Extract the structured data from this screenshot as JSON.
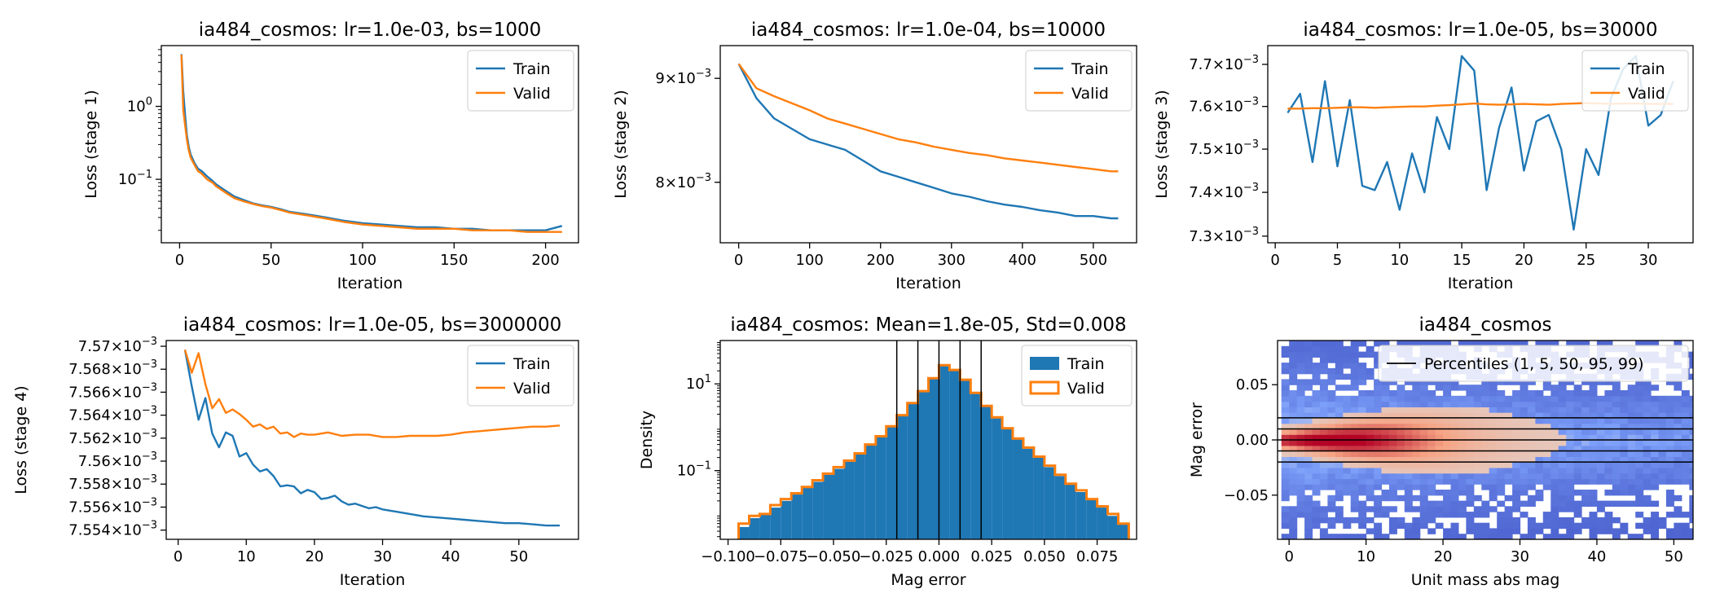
{
  "colors": {
    "train": "#1f77b4",
    "valid": "#ff7f0e",
    "percentile_line": "#000000"
  },
  "chart_data": [
    {
      "type": "line",
      "title": "ia484_cosmos: lr=1.0e-03, bs=1000",
      "xlabel": "Iteration",
      "ylabel": "Loss (stage 1)",
      "yscale": "log",
      "xlim": [
        -10,
        218
      ],
      "ylim": [
        0.0135,
        6.8
      ],
      "xticks": [
        0,
        50,
        100,
        150,
        200
      ],
      "xtick_labels": [
        "0",
        "50",
        "100",
        "150",
        "200"
      ],
      "yticks": [
        1,
        0.1
      ],
      "ytick_labels": [
        "10^0",
        "10^−1"
      ],
      "legend": "top-right",
      "series": [
        {
          "name": "Train",
          "color_key": "train",
          "x": [
            1,
            2,
            3,
            4,
            5,
            6,
            8,
            10,
            12,
            15,
            18,
            20,
            25,
            30,
            35,
            40,
            45,
            50,
            55,
            60,
            70,
            80,
            90,
            100,
            110,
            120,
            130,
            140,
            150,
            160,
            170,
            180,
            190,
            200,
            209
          ],
          "y": [
            5.2,
            1.6,
            0.75,
            0.4,
            0.28,
            0.22,
            0.17,
            0.14,
            0.13,
            0.11,
            0.095,
            0.085,
            0.07,
            0.058,
            0.052,
            0.047,
            0.044,
            0.042,
            0.039,
            0.036,
            0.033,
            0.03,
            0.027,
            0.025,
            0.024,
            0.023,
            0.022,
            0.022,
            0.021,
            0.021,
            0.02,
            0.02,
            0.02,
            0.02,
            0.023
          ]
        },
        {
          "name": "Valid",
          "color_key": "valid",
          "x": [
            1,
            2,
            3,
            4,
            5,
            6,
            8,
            10,
            12,
            15,
            18,
            20,
            25,
            30,
            35,
            40,
            45,
            50,
            55,
            60,
            70,
            80,
            90,
            100,
            110,
            120,
            130,
            140,
            150,
            160,
            170,
            180,
            190,
            200,
            209
          ],
          "y": [
            5.1,
            0.9,
            0.55,
            0.35,
            0.25,
            0.2,
            0.16,
            0.13,
            0.12,
            0.1,
            0.09,
            0.08,
            0.066,
            0.055,
            0.05,
            0.046,
            0.043,
            0.041,
            0.038,
            0.035,
            0.032,
            0.029,
            0.026,
            0.024,
            0.023,
            0.022,
            0.021,
            0.021,
            0.021,
            0.02,
            0.02,
            0.02,
            0.019,
            0.019,
            0.019
          ]
        }
      ]
    },
    {
      "type": "line",
      "title": "ia484_cosmos: lr=1.0e-04, bs=10000",
      "xlabel": "Iteration",
      "ylabel": "Loss (stage 2)",
      "yscale": "log",
      "xlim": [
        -26,
        561
      ],
      "ylim": [
        0.00747,
        0.00934
      ],
      "xticks": [
        0,
        100,
        200,
        300,
        400,
        500
      ],
      "xtick_labels": [
        "0",
        "100",
        "200",
        "300",
        "400",
        "500"
      ],
      "yticks": [
        0.009,
        0.008
      ],
      "ytick_labels": [
        "9×10^−3",
        "8×10^−3"
      ],
      "legend": "top-right",
      "series": [
        {
          "name": "Train",
          "color_key": "train",
          "x": [
            0,
            25,
            50,
            75,
            100,
            125,
            150,
            175,
            200,
            225,
            250,
            275,
            300,
            325,
            350,
            375,
            400,
            425,
            450,
            475,
            500,
            525,
            535
          ],
          "y": [
            0.00915,
            0.0088,
            0.0086,
            0.0085,
            0.0084,
            0.00835,
            0.0083,
            0.0082,
            0.0081,
            0.00805,
            0.008,
            0.00795,
            0.0079,
            0.00787,
            0.00783,
            0.0078,
            0.00778,
            0.00775,
            0.00773,
            0.0077,
            0.0077,
            0.00768,
            0.00768
          ]
        },
        {
          "name": "Valid",
          "color_key": "valid",
          "x": [
            0,
            25,
            50,
            75,
            100,
            125,
            150,
            175,
            200,
            225,
            250,
            275,
            300,
            325,
            350,
            375,
            400,
            425,
            450,
            475,
            500,
            525,
            535
          ],
          "y": [
            0.00915,
            0.0089,
            0.00882,
            0.00875,
            0.00868,
            0.0086,
            0.00855,
            0.0085,
            0.00845,
            0.0084,
            0.00837,
            0.00833,
            0.0083,
            0.00827,
            0.00825,
            0.00822,
            0.0082,
            0.00818,
            0.00816,
            0.00814,
            0.00812,
            0.0081,
            0.0081
          ]
        }
      ]
    },
    {
      "type": "line",
      "title": "ia484_cosmos: lr=1.0e-05, bs=30000",
      "xlabel": "Iteration",
      "ylabel": "Loss (stage 3)",
      "yscale": "log",
      "xlim": [
        -0.6,
        33.6
      ],
      "ylim": [
        0.007285,
        0.007745
      ],
      "xticks": [
        0,
        5,
        10,
        15,
        20,
        25,
        30
      ],
      "xtick_labels": [
        "0",
        "5",
        "10",
        "15",
        "20",
        "25",
        "30"
      ],
      "yticks": [
        0.0077,
        0.0076,
        0.0075,
        0.0074,
        0.0073
      ],
      "ytick_labels": [
        "7.7×10^−3",
        "7.6×10^−3",
        "7.5×10^−3",
        "7.4×10^−3",
        "7.3×10^−3"
      ],
      "legend": "top-right",
      "series": [
        {
          "name": "Train",
          "color_key": "train",
          "x": [
            1,
            2,
            3,
            4,
            5,
            6,
            7,
            8,
            9,
            10,
            11,
            12,
            13,
            14,
            15,
            16,
            17,
            18,
            19,
            20,
            21,
            22,
            23,
            24,
            25,
            26,
            27,
            28,
            29,
            30,
            31,
            32
          ],
          "y": [
            0.007585,
            0.00763,
            0.00747,
            0.00766,
            0.00746,
            0.007615,
            0.007415,
            0.007405,
            0.00747,
            0.00736,
            0.00749,
            0.0074,
            0.007575,
            0.0075,
            0.00772,
            0.007685,
            0.007405,
            0.00755,
            0.007645,
            0.00745,
            0.007565,
            0.00758,
            0.0075,
            0.007315,
            0.0075,
            0.00744,
            0.00762,
            0.00769,
            0.00772,
            0.007555,
            0.00758,
            0.00766
          ]
        },
        {
          "name": "Valid",
          "color_key": "valid",
          "x": [
            1,
            2,
            3,
            4,
            5,
            6,
            7,
            8,
            9,
            10,
            11,
            12,
            13,
            14,
            15,
            16,
            17,
            18,
            19,
            20,
            21,
            22,
            23,
            24,
            25,
            26,
            27,
            28,
            29,
            30,
            31,
            32
          ],
          "y": [
            0.007595,
            0.007595,
            0.007596,
            0.007596,
            0.007597,
            0.007598,
            0.007598,
            0.007597,
            0.007598,
            0.007599,
            0.0076,
            0.0076,
            0.007602,
            0.007603,
            0.007605,
            0.007607,
            0.007605,
            0.007604,
            0.007605,
            0.007606,
            0.007605,
            0.007604,
            0.007606,
            0.007607,
            0.007608,
            0.007607,
            0.007606,
            0.007607,
            0.007607,
            0.007606,
            0.007606,
            0.007606
          ]
        }
      ]
    },
    {
      "type": "line",
      "title": "ia484_cosmos: lr=1.0e-05, bs=3000000",
      "xlabel": "Iteration",
      "ylabel": "Loss (stage 4)",
      "yscale": "log",
      "xlim": [
        -1.75,
        58.75
      ],
      "ylim": [
        0.0075532,
        0.0075705
      ],
      "xticks": [
        0,
        10,
        20,
        30,
        40,
        50
      ],
      "xtick_labels": [
        "0",
        "10",
        "20",
        "30",
        "40",
        "50"
      ],
      "yticks": [
        0.00757,
        0.007568,
        0.007566,
        0.007564,
        0.007562,
        0.00756,
        0.007558,
        0.007556,
        0.007554
      ],
      "ytick_labels": [
        "7.57×10^−3",
        "7.568×10^−3",
        "7.566×10^−3",
        "7.564×10^−3",
        "7.562×10^−3",
        "7.56×10^−3",
        "7.558×10^−3",
        "7.556×10^−3",
        "7.554×10^−3"
      ],
      "legend": "top-right",
      "series": [
        {
          "name": "Train",
          "color_key": "train",
          "x": [
            1,
            2,
            3,
            4,
            5,
            6,
            7,
            8,
            9,
            10,
            11,
            12,
            13,
            14,
            15,
            16,
            17,
            18,
            19,
            20,
            21,
            22,
            23,
            24,
            25,
            26,
            27,
            28,
            29,
            30,
            32,
            34,
            36,
            38,
            40,
            42,
            44,
            46,
            48,
            50,
            52,
            54,
            56
          ],
          "y": [
            0.0075697,
            0.0075665,
            0.0075636,
            0.0075655,
            0.0075624,
            0.0075612,
            0.0075625,
            0.0075622,
            0.0075604,
            0.0075607,
            0.0075597,
            0.0075591,
            0.0075593,
            0.0075587,
            0.0075578,
            0.0075579,
            0.0075578,
            0.0075572,
            0.0075575,
            0.0075573,
            0.0075567,
            0.0075568,
            0.007557,
            0.0075565,
            0.0075562,
            0.0075563,
            0.0075561,
            0.0075559,
            0.007556,
            0.0075558,
            0.0075556,
            0.0075554,
            0.0075552,
            0.0075551,
            0.007555,
            0.0075549,
            0.0075548,
            0.0075547,
            0.0075546,
            0.0075546,
            0.0075545,
            0.0075544,
            0.0075544
          ]
        },
        {
          "name": "Valid",
          "color_key": "valid",
          "x": [
            1,
            2,
            3,
            4,
            5,
            6,
            7,
            8,
            9,
            10,
            11,
            12,
            13,
            14,
            15,
            16,
            17,
            18,
            19,
            20,
            22,
            24,
            26,
            28,
            30,
            32,
            34,
            36,
            38,
            40,
            42,
            44,
            46,
            48,
            50,
            52,
            54,
            56
          ],
          "y": [
            0.0075697,
            0.0075677,
            0.0075694,
            0.0075667,
            0.0075646,
            0.0075654,
            0.0075642,
            0.0075645,
            0.0075641,
            0.0075636,
            0.007563,
            0.0075632,
            0.0075628,
            0.007563,
            0.0075624,
            0.0075625,
            0.0075621,
            0.0075624,
            0.0075623,
            0.0075623,
            0.0075625,
            0.0075622,
            0.0075623,
            0.0075623,
            0.0075621,
            0.0075621,
            0.0075622,
            0.0075622,
            0.0075622,
            0.0075623,
            0.0075625,
            0.0075626,
            0.0075627,
            0.0075628,
            0.0075629,
            0.007563,
            0.007563,
            0.0075631
          ]
        }
      ]
    },
    {
      "type": "bar",
      "subtype": "histogram",
      "title": "ia484_cosmos: Mean=1.8e-05, Std=0.008",
      "xlabel": "Mag error",
      "ylabel": "Density",
      "yscale": "log",
      "xlim": [
        -0.1037,
        0.0937
      ],
      "ylim": [
        0.0026,
        100
      ],
      "xticks": [
        -0.1,
        -0.075,
        -0.05,
        -0.025,
        0.0,
        0.025,
        0.05,
        0.075
      ],
      "xtick_labels": [
        "−0.100",
        "−0.075",
        "−0.050",
        "−0.025",
        "0.000",
        "0.025",
        "0.050",
        "0.075"
      ],
      "yticks": [
        10,
        0.1
      ],
      "ytick_labels": [
        "10^1",
        "10^−1"
      ],
      "legend": "top-right",
      "bin_edges": [
        -0.095,
        -0.09,
        -0.085,
        -0.08,
        -0.075,
        -0.07,
        -0.065,
        -0.06,
        -0.055,
        -0.05,
        -0.045,
        -0.04,
        -0.035,
        -0.03,
        -0.025,
        -0.02,
        -0.015,
        -0.01,
        -0.005,
        0.0,
        0.005,
        0.01,
        0.015,
        0.02,
        0.025,
        0.03,
        0.035,
        0.04,
        0.045,
        0.05,
        0.055,
        0.06,
        0.065,
        0.07,
        0.075,
        0.08,
        0.085,
        0.09
      ],
      "series": [
        {
          "name": "Train",
          "style": "filled",
          "color_key": "train",
          "values": [
            0.005,
            0.008,
            0.01,
            0.014,
            0.02,
            0.028,
            0.04,
            0.055,
            0.08,
            0.11,
            0.16,
            0.24,
            0.38,
            0.6,
            1.0,
            1.8,
            3.5,
            6.5,
            13,
            28,
            20,
            12,
            6,
            3,
            1.6,
            0.9,
            0.52,
            0.32,
            0.2,
            0.12,
            0.075,
            0.05,
            0.032,
            0.021,
            0.014,
            0.009,
            0.006
          ]
        },
        {
          "name": "Valid",
          "style": "step",
          "color_key": "valid",
          "values": [
            0.006,
            0.009,
            0.01,
            0.016,
            0.022,
            0.03,
            0.042,
            0.06,
            0.085,
            0.12,
            0.17,
            0.25,
            0.4,
            0.62,
            1.05,
            1.9,
            3.6,
            6.8,
            13.5,
            27,
            21,
            12.5,
            6.2,
            3.1,
            1.7,
            0.95,
            0.55,
            0.34,
            0.21,
            0.13,
            0.08,
            0.05,
            0.035,
            0.022,
            0.015,
            0.01,
            0.006
          ]
        }
      ],
      "percentile_lines": [
        -0.02,
        -0.01,
        0.0,
        0.01,
        0.02
      ]
    },
    {
      "type": "heatmap",
      "title": "ia484_cosmos",
      "xlabel": "Unit mass abs mag",
      "ylabel": "Mag error",
      "xlim": [
        -1.5,
        52.5
      ],
      "ylim": [
        -0.09,
        0.09
      ],
      "xticks": [
        0,
        10,
        20,
        30,
        40,
        50
      ],
      "xtick_labels": [
        "0",
        "10",
        "20",
        "30",
        "40",
        "50"
      ],
      "yticks": [
        0.05,
        0.0,
        -0.05
      ],
      "ytick_labels": [
        "0.05",
        "0.00",
        "−0.05"
      ],
      "colormap": "coolwarm",
      "density_peak": [
        6,
        0.0
      ],
      "legend": "top-right",
      "legend_entries": [
        "Percentiles (1, 5, 50, 95, 99)"
      ],
      "percentile_lines": [
        -0.02,
        -0.01,
        0.0,
        0.01,
        0.02
      ]
    }
  ]
}
